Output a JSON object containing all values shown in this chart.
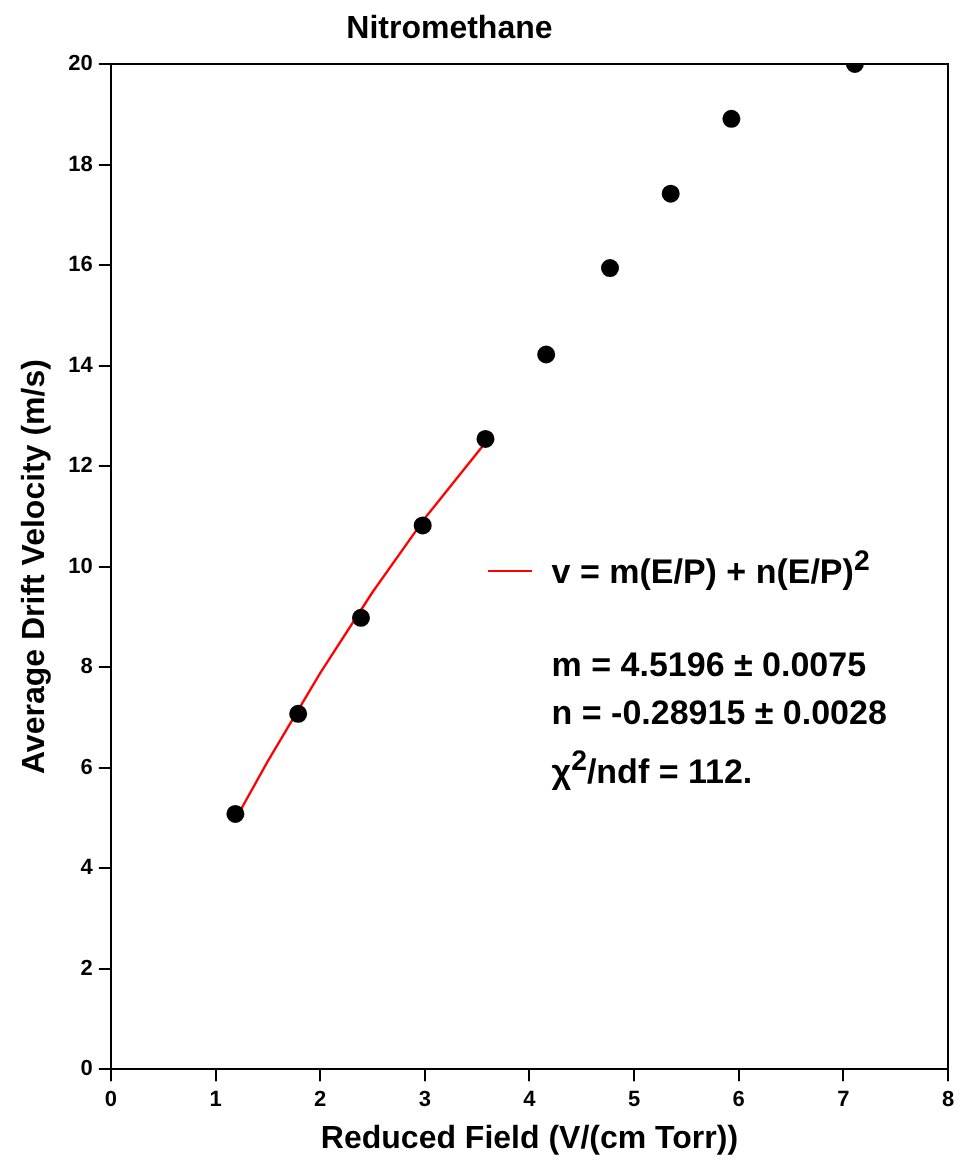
{
  "chart_data": {
    "type": "scatter",
    "title": "Nitromethane",
    "xlabel": "Reduced Field (V/(cm Torr))",
    "ylabel": "Average Drift Velocity (m/s)",
    "xlim": [
      0,
      8
    ],
    "xticks": [
      0,
      1,
      2,
      3,
      4,
      5,
      6,
      7,
      8
    ],
    "ylim": [
      0,
      20
    ],
    "yticks": [
      0,
      2,
      4,
      6,
      8,
      10,
      12,
      14,
      16,
      18,
      20
    ],
    "grid": false,
    "legend": "right",
    "marker": "circle",
    "series": [
      {
        "color": "#000000",
        "x": [
          1.19,
          1.79,
          2.39,
          2.98,
          3.58,
          4.16,
          4.77,
          5.35,
          5.93,
          7.11
        ],
        "values": [
          5.08,
          7.07,
          8.98,
          10.82,
          12.54,
          14.22,
          15.94,
          17.42,
          18.91,
          20
        ]
      },
      {
        "type": "line",
        "name": "v = m(E/P) + n(E/P)$^{2}$",
        "color": "#ff0000",
        "marker": "none",
        "x": [
          1.19,
          1.5,
          2,
          2.5,
          3,
          3.58
        ],
        "values": [
          4.97,
          6.13,
          7.88,
          9.49,
          10.96,
          12.47
        ]
      }
    ],
    "annotations": [
      "m = 4.5196 ± 0.0075",
      "n = -0.28915 ± 0.0028",
      "χ$^{2}$/ndf = 112."
    ]
  }
}
